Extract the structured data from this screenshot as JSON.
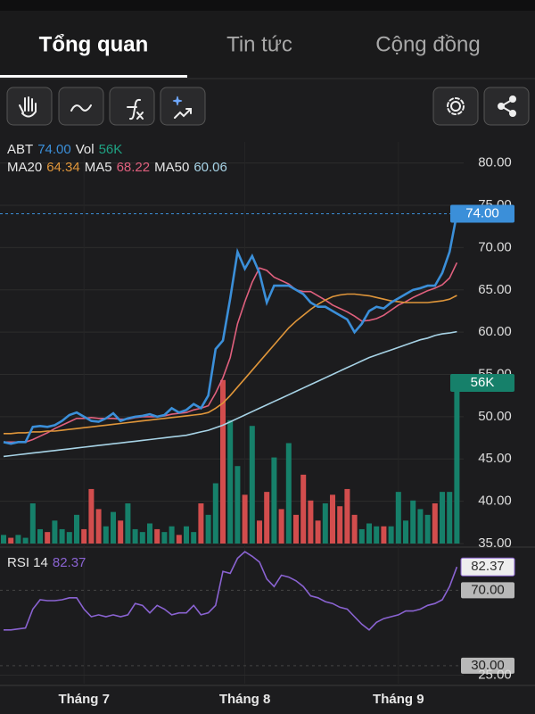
{
  "tabs": [
    "Tổng quan",
    "Tin tức",
    "Cộng đồng"
  ],
  "chart_data": [
    {
      "type": "line",
      "grid": true,
      "categories": [
        null,
        null,
        null,
        null,
        null,
        null,
        null,
        null,
        null,
        null,
        null,
        "Tháng 7",
        null,
        null,
        null,
        null,
        null,
        null,
        null,
        null,
        null,
        null,
        null,
        null,
        null,
        null,
        null,
        null,
        null,
        null,
        null,
        null,
        null,
        "Tháng 8",
        null,
        null,
        null,
        null,
        null,
        null,
        null,
        null,
        null,
        null,
        null,
        null,
        null,
        null,
        null,
        null,
        null,
        null,
        null,
        null,
        "Tháng 9",
        null,
        null,
        null,
        null,
        null,
        null,
        null,
        null
      ],
      "ylim": [
        35,
        82.5
      ],
      "yticks": [
        {
          "value": 35,
          "label": "35.00"
        },
        {
          "value": 40,
          "label": "40.00"
        },
        {
          "value": 45,
          "label": "45.00"
        },
        {
          "value": 50,
          "label": "50.00"
        },
        {
          "value": 55,
          "label": "55.00"
        },
        {
          "value": 60,
          "label": "60.00"
        },
        {
          "value": 65,
          "label": "65.00"
        },
        {
          "value": 70,
          "label": "70.00"
        },
        {
          "value": 75,
          "label": "75.00"
        },
        {
          "value": 80,
          "label": "80.00"
        }
      ],
      "y2lim": [
        0,
        140
      ],
      "series": [
        {
          "name": "ABT",
          "color": "#3b8fd9",
          "values": [
            47.0,
            46.8,
            47.0,
            47.0,
            48.8,
            48.9,
            48.8,
            49.0,
            49.5,
            50.2,
            50.5,
            50.0,
            49.5,
            49.4,
            49.8,
            50.4,
            49.5,
            49.8,
            50.0,
            50.1,
            50.3,
            50.0,
            50.2,
            51.0,
            50.5,
            50.8,
            51.5,
            51.0,
            52.5,
            58.0,
            59.0,
            64.0,
            69.5,
            67.5,
            69.0,
            67.0,
            63.5,
            65.5,
            65.5,
            65.5,
            65.0,
            64.5,
            63.5,
            63.0,
            63.0,
            62.5,
            62.0,
            61.5,
            60.0,
            61.0,
            62.5,
            63.0,
            62.8,
            63.5,
            64.0,
            64.5,
            65.0,
            65.2,
            65.5,
            65.5,
            67.0,
            69.5,
            74.0
          ],
          "value_labels": [
            null,
            null,
            null,
            null,
            null,
            null,
            null,
            null,
            null,
            null,
            null,
            null,
            null,
            null,
            null,
            null,
            null,
            null,
            null,
            null,
            null,
            null,
            null,
            null,
            null,
            null,
            null,
            null,
            null,
            null,
            null,
            null,
            null,
            null,
            null,
            null,
            null,
            null,
            null,
            null,
            null,
            null,
            null,
            null,
            null,
            null,
            null,
            null,
            null,
            null,
            null,
            null,
            null,
            null,
            null,
            null,
            null,
            null,
            null,
            null,
            null,
            null,
            "74.00"
          ]
        },
        {
          "name": "MA20",
          "color": "#e0963a",
          "values": [
            48.0,
            48.0,
            48.1,
            48.1,
            48.2,
            48.2,
            48.3,
            48.3,
            48.4,
            48.5,
            48.6,
            48.7,
            48.8,
            48.9,
            49.0,
            49.1,
            49.2,
            49.3,
            49.4,
            49.5,
            49.6,
            49.7,
            49.8,
            49.9,
            50.0,
            50.1,
            50.2,
            50.3,
            50.5,
            51.0,
            51.6,
            52.5,
            53.5,
            54.5,
            55.5,
            56.5,
            57.5,
            58.5,
            59.5,
            60.5,
            61.3,
            62.0,
            62.7,
            63.3,
            63.8,
            64.2,
            64.4,
            64.5,
            64.5,
            64.4,
            64.3,
            64.1,
            63.9,
            63.7,
            63.6,
            63.5,
            63.5,
            63.5,
            63.5,
            63.6,
            63.7,
            63.9,
            64.34
          ],
          "value_labels": [
            null,
            null,
            null,
            null,
            null,
            null,
            null,
            null,
            null,
            null,
            null,
            null,
            null,
            null,
            null,
            null,
            null,
            null,
            null,
            null,
            null,
            null,
            null,
            null,
            null,
            null,
            null,
            null,
            null,
            null,
            null,
            null,
            null,
            null,
            null,
            null,
            null,
            null,
            null,
            null,
            null,
            null,
            null,
            null,
            null,
            null,
            null,
            null,
            null,
            null,
            null,
            null,
            null,
            null,
            null,
            null,
            null,
            null,
            null,
            null,
            null,
            null,
            "64.34"
          ]
        },
        {
          "name": "MA5",
          "color": "#e0607e",
          "values": [
            47.0,
            47.0,
            47.0,
            47.0,
            47.3,
            47.7,
            48.1,
            48.6,
            49.0,
            49.4,
            49.8,
            49.8,
            49.9,
            49.8,
            49.8,
            49.8,
            49.7,
            49.7,
            49.9,
            50.0,
            50.0,
            50.0,
            50.1,
            50.3,
            50.4,
            50.5,
            50.8,
            51.0,
            51.3,
            52.8,
            54.6,
            57.0,
            61.0,
            63.6,
            65.9,
            67.6,
            67.3,
            66.5,
            66.1,
            65.7,
            65.0,
            64.8,
            64.8,
            64.3,
            63.8,
            63.2,
            62.8,
            62.4,
            61.9,
            61.3,
            61.4,
            61.6,
            62.0,
            62.6,
            63.2,
            63.6,
            64.1,
            64.5,
            64.9,
            65.2,
            65.6,
            66.4,
            68.22
          ],
          "value_labels": [
            null,
            null,
            null,
            null,
            null,
            null,
            null,
            null,
            null,
            null,
            null,
            null,
            null,
            null,
            null,
            null,
            null,
            null,
            null,
            null,
            null,
            null,
            null,
            null,
            null,
            null,
            null,
            null,
            null,
            null,
            null,
            null,
            null,
            null,
            null,
            null,
            null,
            null,
            null,
            null,
            null,
            null,
            null,
            null,
            null,
            null,
            null,
            null,
            null,
            null,
            null,
            null,
            null,
            null,
            null,
            null,
            null,
            null,
            null,
            null,
            null,
            null,
            "68.22"
          ]
        },
        {
          "name": "MA50",
          "color": "#a7d3e6",
          "values": [
            45.3,
            45.4,
            45.5,
            45.6,
            45.7,
            45.8,
            45.9,
            46.0,
            46.1,
            46.2,
            46.3,
            46.4,
            46.5,
            46.6,
            46.7,
            46.8,
            46.9,
            47.0,
            47.1,
            47.2,
            47.3,
            47.4,
            47.5,
            47.6,
            47.7,
            47.8,
            48.0,
            48.2,
            48.4,
            48.7,
            49.0,
            49.4,
            49.8,
            50.2,
            50.6,
            51.0,
            51.4,
            51.8,
            52.2,
            52.6,
            53.0,
            53.4,
            53.8,
            54.2,
            54.6,
            55.0,
            55.4,
            55.8,
            56.2,
            56.6,
            57.0,
            57.3,
            57.6,
            57.9,
            58.2,
            58.5,
            58.8,
            59.1,
            59.3,
            59.6,
            59.8,
            59.9,
            60.06
          ],
          "value_labels": [
            null,
            null,
            null,
            null,
            null,
            null,
            null,
            null,
            null,
            null,
            null,
            null,
            null,
            null,
            null,
            null,
            null,
            null,
            null,
            null,
            null,
            null,
            null,
            null,
            null,
            null,
            null,
            null,
            null,
            null,
            null,
            null,
            null,
            null,
            null,
            null,
            null,
            null,
            null,
            null,
            null,
            null,
            null,
            null,
            null,
            null,
            null,
            null,
            null,
            null,
            null,
            null,
            null,
            null,
            null,
            null,
            null,
            null,
            null,
            null,
            null,
            null,
            "60.06"
          ]
        },
        {
          "name": "Vol",
          "type": "bar",
          "axis": "y2",
          "color": "#16806a",
          "values": [
            3,
            2,
            3,
            2,
            14,
            5,
            4,
            8,
            5,
            4,
            10,
            5,
            19,
            12,
            6,
            11,
            8,
            14,
            5,
            4,
            7,
            5,
            4,
            6,
            3,
            6,
            4,
            14,
            10,
            21,
            57,
            43,
            27,
            17,
            41,
            8,
            18,
            30,
            12,
            35,
            10,
            24,
            15,
            8,
            14,
            17,
            13,
            19,
            10,
            5,
            7,
            6,
            6,
            6,
            18,
            8,
            15,
            12,
            10,
            14,
            18,
            18,
            56
          ],
          "colors": [
            "#16806a",
            "#d24d4d",
            "#16806a",
            "#16806a",
            "#16806a",
            "#16806a",
            "#d24d4d",
            "#16806a",
            "#16806a",
            "#16806a",
            "#16806a",
            "#d24d4d",
            "#d24d4d",
            "#d24d4d",
            "#16806a",
            "#16806a",
            "#d24d4d",
            "#16806a",
            "#16806a",
            "#16806a",
            "#16806a",
            "#d24d4d",
            "#16806a",
            "#16806a",
            "#d24d4d",
            "#16806a",
            "#16806a",
            "#d24d4d",
            "#16806a",
            "#16806a",
            "#d24d4d",
            "#16806a",
            "#16806a",
            "#d24d4d",
            "#16806a",
            "#d24d4d",
            "#d24d4d",
            "#16806a",
            "#d24d4d",
            "#16806a",
            "#d24d4d",
            "#d24d4d",
            "#d24d4d",
            "#d24d4d",
            "#16806a",
            "#d24d4d",
            "#d24d4d",
            "#d24d4d",
            "#d24d4d",
            "#16806a",
            "#16806a",
            "#16806a",
            "#d24d4d",
            "#16806a",
            "#16806a",
            "#16806a",
            "#16806a",
            "#16806a",
            "#16806a",
            "#d24d4d",
            "#16806a",
            "#16806a",
            "#16806a"
          ],
          "value_labels": [
            null,
            null,
            null,
            null,
            null,
            null,
            null,
            null,
            null,
            null,
            null,
            null,
            null,
            null,
            null,
            null,
            null,
            null,
            null,
            null,
            null,
            null,
            null,
            null,
            null,
            null,
            null,
            null,
            null,
            null,
            null,
            null,
            null,
            null,
            null,
            null,
            null,
            null,
            null,
            null,
            null,
            null,
            null,
            null,
            null,
            null,
            null,
            null,
            null,
            null,
            null,
            null,
            null,
            null,
            null,
            null,
            null,
            null,
            null,
            null,
            null,
            null,
            "56K"
          ]
        }
      ]
    },
    {
      "type": "line",
      "ylim": [
        20.5,
        91
      ],
      "yticks": [
        {
          "value": 25,
          "label": "25.00"
        }
      ],
      "levels": [
        {
          "value": 70,
          "label": "70.00"
        },
        {
          "value": 30,
          "label": "30.00"
        }
      ],
      "series": [
        {
          "name": "RSI 14",
          "color": "#8a63d2",
          "values": [
            49,
            49,
            49.5,
            50,
            60,
            65,
            64.5,
            64.5,
            65,
            66,
            66,
            60,
            56,
            57,
            56,
            57,
            56,
            57,
            63,
            62,
            58,
            62,
            60,
            57,
            58,
            58,
            62,
            57,
            58,
            62,
            80,
            79,
            87,
            90.5,
            88,
            85,
            76,
            72,
            78,
            77,
            75,
            72,
            67,
            66,
            64,
            63,
            61,
            60,
            56,
            52,
            49,
            53,
            55,
            56,
            57,
            59,
            59,
            60,
            62,
            63,
            65,
            72,
            82.37
          ],
          "value_labels": [
            null,
            null,
            null,
            null,
            null,
            null,
            null,
            null,
            null,
            null,
            null,
            null,
            null,
            null,
            null,
            null,
            null,
            null,
            null,
            null,
            null,
            null,
            null,
            null,
            null,
            null,
            null,
            null,
            null,
            null,
            null,
            null,
            null,
            null,
            null,
            null,
            null,
            null,
            null,
            null,
            null,
            null,
            null,
            null,
            null,
            null,
            null,
            null,
            null,
            null,
            null,
            null,
            null,
            null,
            null,
            null,
            null,
            null,
            null,
            null,
            null,
            null,
            "82.37"
          ]
        }
      ]
    }
  ]
}
